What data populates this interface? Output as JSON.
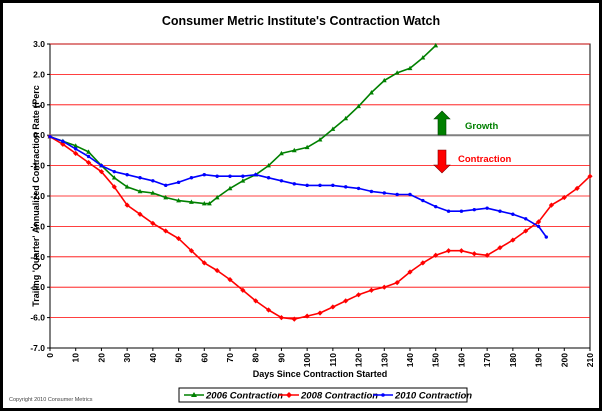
{
  "chart_data": {
    "type": "line",
    "title": "Consumer Metric Institute's Contraction Watch",
    "xlabel": "Days Since Contraction Started",
    "ylabel": "Trailing 'Quarter' Annualized Contraction Rate (Perc",
    "xlim": [
      0,
      210
    ],
    "ylim": [
      -7.0,
      3.0
    ],
    "x_ticks": [
      0,
      10,
      20,
      30,
      40,
      50,
      60,
      70,
      80,
      90,
      100,
      110,
      120,
      130,
      140,
      150,
      160,
      170,
      180,
      190,
      200,
      210
    ],
    "y_ticks": [
      3.0,
      2.0,
      1.0,
      0.0,
      -1.0,
      -2.0,
      -3.0,
      -4.0,
      -5.0,
      -6.0,
      -7.0
    ],
    "y_tick_labels": [
      "3.0",
      "2.0",
      "1.0",
      "0.0",
      "-1.0",
      "-2.0",
      "-3.0",
      "-4.0",
      "-5.0",
      "-6.0",
      "-7.0"
    ],
    "grid": "horizontal",
    "grid_color": "#ff0000",
    "zero_line_color": "#808080",
    "series": [
      {
        "name": "2006 Contraction",
        "color": "#008000",
        "marker": "triangle",
        "x": [
          0,
          5,
          10,
          15,
          20,
          25,
          30,
          35,
          40,
          45,
          50,
          55,
          60,
          62,
          65,
          70,
          75,
          80,
          85,
          90,
          95,
          100,
          105,
          110,
          115,
          120,
          125,
          130,
          135,
          140,
          145,
          150
        ],
        "y": [
          -0.05,
          -0.2,
          -0.35,
          -0.55,
          -1.0,
          -1.4,
          -1.7,
          -1.85,
          -1.9,
          -2.05,
          -2.15,
          -2.2,
          -2.25,
          -2.25,
          -2.05,
          -1.75,
          -1.5,
          -1.3,
          -1.0,
          -0.6,
          -0.5,
          -0.4,
          -0.15,
          0.2,
          0.55,
          0.95,
          1.4,
          1.8,
          2.05,
          2.2,
          2.55,
          2.95
        ]
      },
      {
        "name": "2008 Contraction",
        "color": "#ff0000",
        "marker": "diamond",
        "x": [
          0,
          5,
          10,
          15,
          20,
          25,
          30,
          35,
          40,
          45,
          50,
          55,
          60,
          65,
          70,
          75,
          80,
          85,
          90,
          95,
          100,
          105,
          110,
          115,
          120,
          125,
          130,
          135,
          140,
          145,
          150,
          155,
          160,
          165,
          170,
          175,
          180,
          185,
          190,
          195,
          200,
          205,
          210
        ],
        "y": [
          -0.05,
          -0.3,
          -0.6,
          -0.9,
          -1.2,
          -1.7,
          -2.3,
          -2.6,
          -2.9,
          -3.15,
          -3.4,
          -3.8,
          -4.2,
          -4.45,
          -4.75,
          -5.1,
          -5.45,
          -5.75,
          -6.0,
          -6.05,
          -5.95,
          -5.85,
          -5.65,
          -5.45,
          -5.25,
          -5.1,
          -5.0,
          -4.85,
          -4.5,
          -4.2,
          -3.95,
          -3.8,
          -3.8,
          -3.9,
          -3.95,
          -3.7,
          -3.45,
          -3.15,
          -2.85,
          -2.3,
          -2.05,
          -1.75,
          -1.35
        ]
      },
      {
        "name": "2010 Contraction",
        "color": "#0000ff",
        "marker": "dot",
        "x": [
          0,
          5,
          10,
          15,
          20,
          25,
          30,
          35,
          40,
          45,
          50,
          55,
          60,
          65,
          70,
          75,
          80,
          85,
          90,
          95,
          100,
          105,
          110,
          115,
          120,
          125,
          130,
          135,
          140,
          145,
          150,
          155,
          160,
          165,
          170,
          175,
          180,
          185,
          190,
          193
        ],
        "y": [
          -0.05,
          -0.2,
          -0.45,
          -0.7,
          -1.0,
          -1.2,
          -1.3,
          -1.4,
          -1.5,
          -1.65,
          -1.55,
          -1.4,
          -1.3,
          -1.35,
          -1.35,
          -1.35,
          -1.3,
          -1.4,
          -1.5,
          -1.6,
          -1.65,
          -1.65,
          -1.65,
          -1.7,
          -1.75,
          -1.85,
          -1.9,
          -1.95,
          -1.95,
          -2.15,
          -2.35,
          -2.5,
          -2.5,
          -2.45,
          -2.4,
          -2.5,
          -2.6,
          -2.75,
          -3.0,
          -3.35
        ]
      }
    ],
    "annotations": [
      {
        "text": "Growth",
        "color": "#008000",
        "arrow": "up"
      },
      {
        "text": "Contraction",
        "color": "#ff0000",
        "arrow": "down"
      }
    ],
    "legend": {
      "position": "bottom-center"
    }
  },
  "footer": {
    "copyright": "Copyright 2010 Consumer Metrics"
  }
}
